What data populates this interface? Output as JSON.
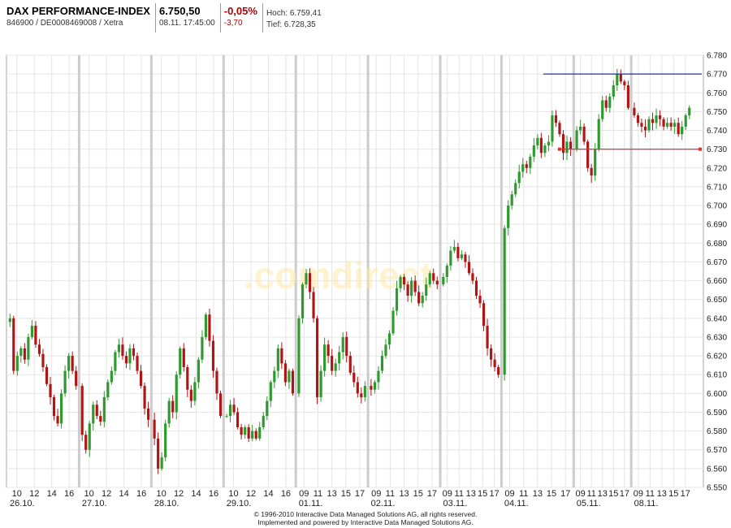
{
  "header": {
    "index_name": "DAX PERFORMANCE-INDEX",
    "wkn_line": "846900 / DE0008469008 / Xetra",
    "last_price": "6.750,50",
    "timestamp": "08.11. 17:45:00",
    "change_pct": "-0,05%",
    "change_abs": "-3,70",
    "high_label": "Hoch: 6.759,41",
    "low_label": "Tief: 6.728,35"
  },
  "watermark": ".comdirect",
  "footer": {
    "line1": "© 1996-2010 Interactive Data Managed Solutions AG, all rights reserved.",
    "line2": "Implemented and powered by Interactive Data Managed Solutions AG."
  },
  "colors": {
    "up": "#2e9a2e",
    "down": "#b01515",
    "resistance_line": "#1f2fb8",
    "support_line": "#e03030",
    "grid": "#e4e4e4",
    "session_separator": "#cccccc"
  },
  "chart_data": {
    "type": "candlestick",
    "title": "",
    "xlabel": "",
    "ylabel": "",
    "ylim": [
      6550,
      6780
    ],
    "y_ticks": [
      "6.550",
      "6.560",
      "6.570",
      "6.580",
      "6.590",
      "6.600",
      "6.610",
      "6.620",
      "6.630",
      "6.640",
      "6.650",
      "6.660",
      "6.670",
      "6.680",
      "6.690",
      "6.700",
      "6.710",
      "6.720",
      "6.730",
      "6.740",
      "6.750",
      "6.760",
      "6.770",
      "6.780"
    ],
    "grid": true,
    "days": [
      {
        "date": "26.10.",
        "hour_ticks": [
          "10",
          "12",
          "14",
          "16"
        ],
        "close": [
          6640,
          6612,
          6620,
          6624,
          6618,
          6630,
          6636,
          6626,
          6621,
          6614,
          6605,
          6598,
          6588,
          6584,
          6600,
          6612,
          6620,
          6612,
          6604
        ]
      },
      {
        "date": "27.10.",
        "hour_ticks": [
          "10",
          "12",
          "14",
          "16"
        ],
        "close": [
          6578,
          6570,
          6584,
          6594,
          6588,
          6585,
          6598,
          6606,
          6612,
          6622,
          6626,
          6620,
          6616,
          6624,
          6620,
          6612,
          6604,
          6592,
          6586
        ]
      },
      {
        "date": "28.10.",
        "hour_ticks": [
          "10",
          "12",
          "14",
          "16"
        ],
        "close": [
          6576,
          6560,
          6566,
          6584,
          6596,
          6590,
          6610,
          6624,
          6614,
          6602,
          6596,
          6606,
          6618,
          6630,
          6642,
          6628,
          6612,
          6600,
          6588
        ]
      },
      {
        "date": "29.10.",
        "hour_ticks": [
          "10",
          "12",
          "14",
          "16"
        ],
        "close": [
          6588,
          6594,
          6590,
          6582,
          6578,
          6582,
          6576,
          6580,
          6576,
          6582,
          6588,
          6596,
          6606,
          6612,
          6624,
          6616,
          6606,
          6612,
          6600
        ]
      },
      {
        "date": "01.11.",
        "hour_ticks": [
          "09",
          "11",
          "13",
          "15",
          "17"
        ],
        "close": [
          6640,
          6658,
          6664,
          6654,
          6640,
          6598,
          6612,
          6626,
          6620,
          6612,
          6616,
          6622,
          6630,
          6620,
          6611,
          6606,
          6600,
          6598,
          6604
        ]
      },
      {
        "date": "02.11.",
        "hour_ticks": [
          "09",
          "11",
          "13",
          "15",
          "17"
        ],
        "close": [
          6602,
          6606,
          6612,
          6620,
          6626,
          6632,
          6644,
          6656,
          6662,
          6658,
          6652,
          6660,
          6654,
          6648,
          6652,
          6658,
          6664,
          6660,
          6658
        ]
      },
      {
        "date": "03.11.",
        "hour_ticks": [
          "09",
          "11",
          "13",
          "15",
          "17"
        ],
        "close": [
          6662,
          6668,
          6676,
          6678,
          6672,
          6674,
          6670,
          6664,
          6660,
          6652,
          6648,
          6636,
          6624,
          6618,
          6614,
          6610
        ]
      },
      {
        "date": "04.11.",
        "hour_ticks": [
          "09",
          "11",
          "13",
          "15",
          "17"
        ],
        "close": [
          6688,
          6700,
          6706,
          6712,
          6718,
          6722,
          6720,
          6726,
          6732,
          6736,
          6728,
          6732,
          6734,
          6748,
          6744,
          6738,
          6728,
          6734,
          6730
        ]
      },
      {
        "date": "05.11.",
        "hour_ticks": [
          "09",
          "11",
          "13",
          "15",
          "17"
        ],
        "close": [
          6740,
          6742,
          6734,
          6720,
          6716,
          6730,
          6746,
          6756,
          6752,
          6758,
          6764,
          6770,
          6766,
          6764,
          6752
        ]
      },
      {
        "date": "08.11.",
        "hour_ticks": [
          "09",
          "11",
          "13",
          "15",
          "17"
        ],
        "close": [
          6748,
          6744,
          6742,
          6740,
          6746,
          6744,
          6748,
          6746,
          6742,
          6744,
          6742,
          6744,
          6738,
          6742,
          6748,
          6752
        ]
      }
    ],
    "annotations": [
      {
        "type": "horizontal_line",
        "label": "resistance",
        "value": 6770,
        "from_day": "04.11.",
        "to_day": "08.11."
      },
      {
        "type": "horizontal_line",
        "label": "support",
        "value": 6730,
        "from_day": "04.11.",
        "to_day": "08.11."
      }
    ]
  }
}
